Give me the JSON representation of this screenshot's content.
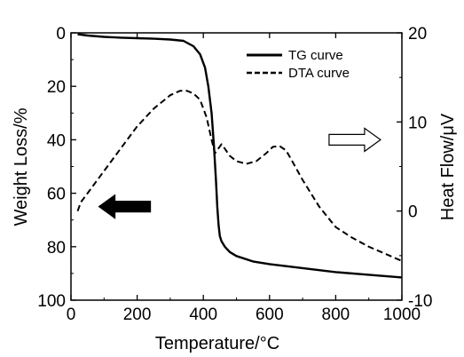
{
  "chart_data": {
    "type": "line",
    "x_axis": {
      "label": "Temperature/°C",
      "range": [
        0,
        1000
      ],
      "ticks": [
        "0",
        "200",
        "400",
        "600",
        "800",
        "1000"
      ]
    },
    "y_axis_left": {
      "label": "Weight Loss/%",
      "range": [
        0,
        100
      ],
      "inverted": true,
      "ticks": [
        "0",
        "20",
        "40",
        "60",
        "80",
        "100"
      ]
    },
    "y_axis_right": {
      "label": "Heat Flow/μV",
      "range": [
        -10,
        20
      ],
      "ticks": [
        "20",
        "10",
        "0",
        "-10"
      ]
    },
    "legend_position": "top-right",
    "grid": false,
    "series": [
      {
        "name": "TG curve",
        "axis": "left",
        "style": "solid",
        "color": "#000000",
        "x": [
          20,
          50,
          100,
          150,
          200,
          250,
          300,
          340,
          370,
          390,
          405,
          415,
          425,
          432,
          438,
          442,
          446,
          450,
          455,
          465,
          480,
          500,
          550,
          600,
          700,
          800,
          900,
          1000
        ],
        "y": [
          0.5,
          1,
          1.5,
          1.8,
          2.0,
          2.2,
          2.5,
          3,
          5,
          8,
          13,
          20,
          30,
          42,
          55,
          65,
          72,
          76,
          78,
          80,
          82,
          83.5,
          85.5,
          86.5,
          88,
          89.5,
          90.5,
          91.5
        ]
      },
      {
        "name": "DTA curve",
        "axis": "right",
        "style": "dashed",
        "color": "#000000",
        "x": [
          20,
          30,
          50,
          100,
          150,
          200,
          250,
          300,
          330,
          350,
          370,
          390,
          410,
          425,
          435,
          445,
          455,
          465,
          480,
          500,
          530,
          560,
          590,
          610,
          630,
          650,
          670,
          700,
          750,
          800,
          850,
          900,
          950,
          1000
        ],
        "y": [
          0,
          1,
          2,
          4.5,
          7,
          9.5,
          11.5,
          13,
          13.5,
          13.5,
          13.2,
          12.5,
          10.5,
          8,
          6.5,
          7,
          7.5,
          7,
          6.2,
          5.6,
          5.3,
          5.6,
          6.5,
          7.2,
          7.3,
          6.8,
          5.5,
          3.5,
          0.5,
          -1.8,
          -3,
          -4,
          -4.8,
          -5.6
        ]
      }
    ],
    "annotations": [
      {
        "name": "left-arrow",
        "direction": "left",
        "fill": "#000000",
        "x": 165,
        "y": 65
      },
      {
        "name": "right-arrow",
        "direction": "right",
        "fill": "#ffffff",
        "x": 855,
        "y": 8
      }
    ]
  }
}
